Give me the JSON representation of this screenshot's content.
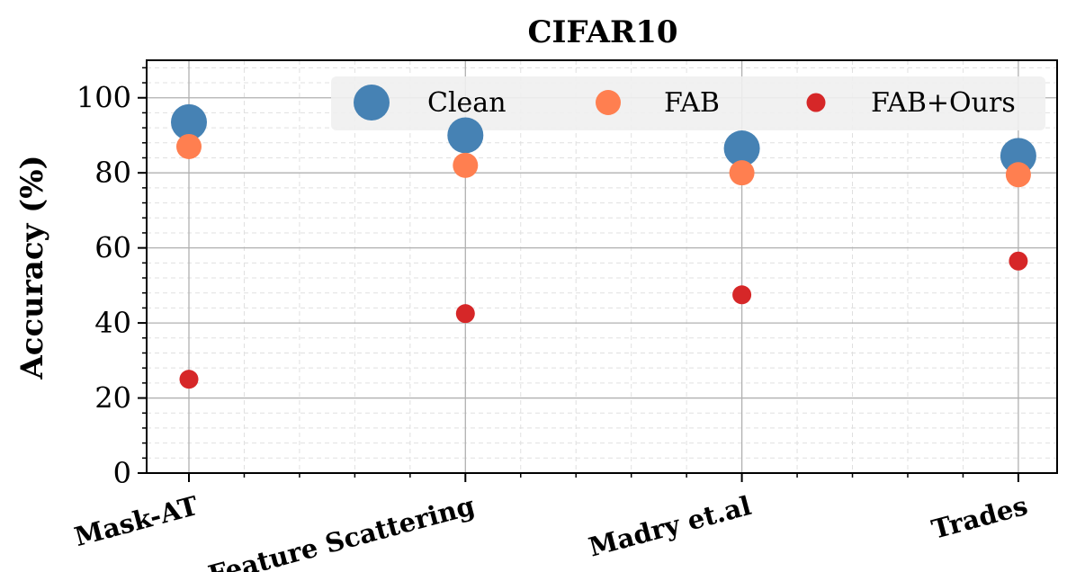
{
  "chart_data": {
    "type": "scatter",
    "title": "CIFAR10",
    "xlabel": "",
    "ylabel": "Accuracy (%)",
    "categories": [
      "Mask-AT",
      "Feature Scattering",
      "Madry et.al",
      "Trades"
    ],
    "ylim": [
      0,
      110
    ],
    "yticks": [
      0,
      20,
      40,
      60,
      80,
      100
    ],
    "grid": true,
    "minor_grid": true,
    "legend_position": "top-right",
    "series": [
      {
        "name": "Clean",
        "values": [
          93.5,
          90.0,
          86.5,
          84.5
        ],
        "color": "#4682b4",
        "marker_size": "large"
      },
      {
        "name": "FAB",
        "values": [
          87.0,
          82.0,
          80.0,
          79.5
        ],
        "color": "#ff7f50",
        "marker_size": "medium"
      },
      {
        "name": "FAB+Ours",
        "values": [
          25.0,
          42.5,
          47.5,
          56.5
        ],
        "color": "#d62728",
        "marker_size": "small"
      }
    ]
  }
}
